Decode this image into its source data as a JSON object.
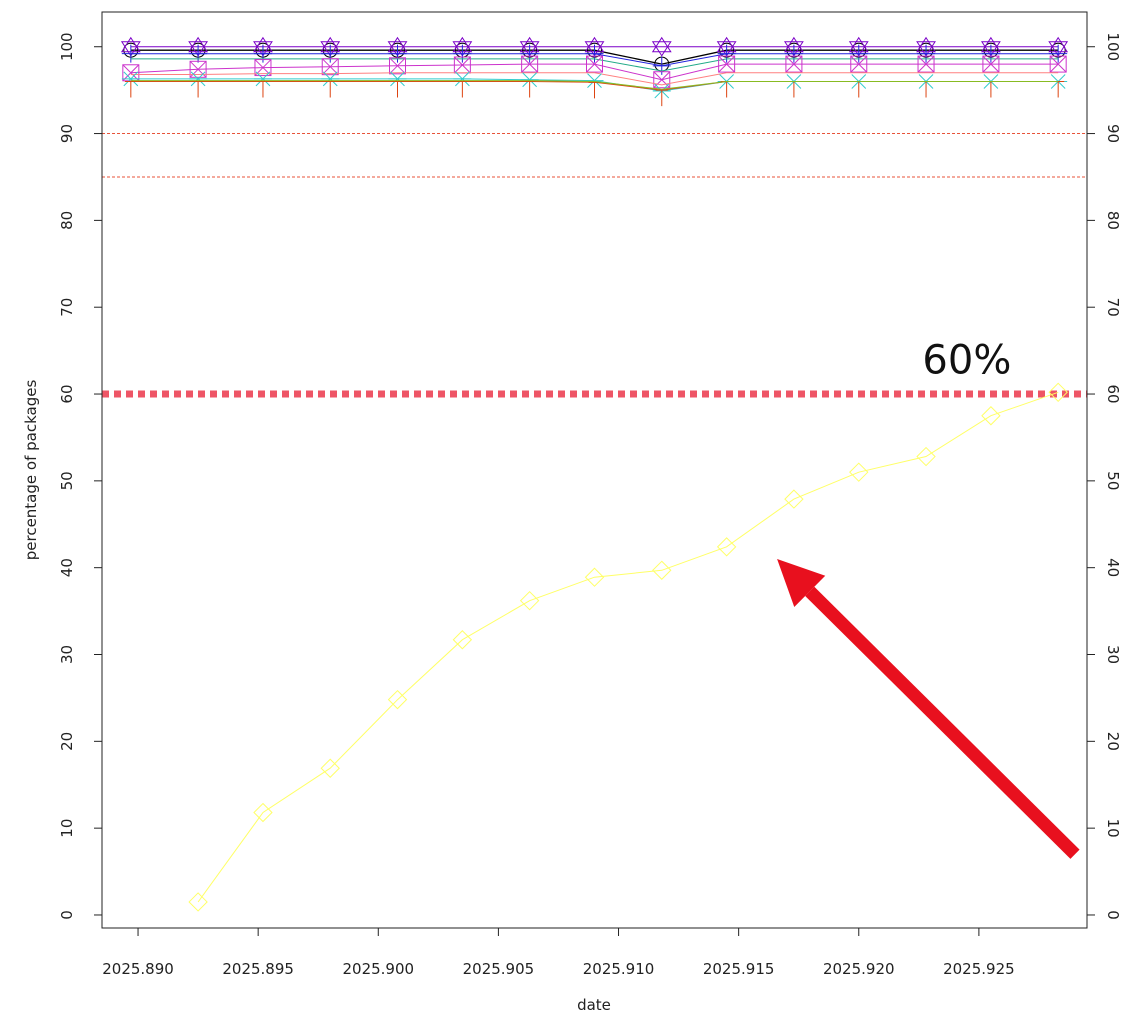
{
  "chart_data": {
    "type": "line",
    "xlabel": "date",
    "ylabel": "percentage of packages",
    "xlim": [
      2025.8885,
      2025.9295
    ],
    "ylim": [
      -1.5,
      104
    ],
    "x_ticks": [
      "2025.890",
      "2025.895",
      "2025.900",
      "2025.905",
      "2025.910",
      "2025.915",
      "2025.920",
      "2025.925"
    ],
    "y_ticks": [
      "0",
      "10",
      "20",
      "30",
      "40",
      "50",
      "60",
      "70",
      "80",
      "90",
      "100"
    ],
    "right_y_ticks": [
      "0",
      "10",
      "20",
      "30",
      "40",
      "50",
      "60",
      "70",
      "80",
      "90",
      "100"
    ],
    "x": [
      2025.8897,
      2025.8925,
      2025.8952,
      2025.898,
      2025.9008,
      2025.9035,
      2025.9063,
      2025.909,
      2025.9118,
      2025.9145,
      2025.9173,
      2025.92,
      2025.9228,
      2025.9255,
      2025.9283
    ],
    "reference_lines": [
      {
        "y": 90,
        "style": "thin dashed",
        "color": "#e8533a"
      },
      {
        "y": 85,
        "style": "thin dashed",
        "color": "#e8533a"
      },
      {
        "y": 60,
        "style": "thick dotted",
        "color": "#ee5566"
      }
    ],
    "annotation": {
      "text": "60%",
      "x": 2025.9245,
      "y": 64
    },
    "arrow": {
      "from": [
        2025.929,
        7
      ],
      "to": [
        2025.9166,
        41
      ],
      "color": "#e8101e"
    },
    "series": [
      {
        "color": "#ffff66",
        "marker": "diamond",
        "values": [
          null,
          1.5,
          11.8,
          16.9,
          24.8,
          31.7,
          36.2,
          38.9,
          39.7,
          42.4,
          47.9,
          51.0,
          52.8,
          57.5,
          60.2
        ]
      },
      {
        "color": "#000000",
        "marker": "circle",
        "values": [
          99.6,
          99.6,
          99.6,
          99.6,
          99.6,
          99.6,
          99.6,
          99.6,
          98.0,
          99.6,
          99.6,
          99.6,
          99.6,
          99.6,
          99.6
        ]
      },
      {
        "color": "#7b00c8",
        "marker": "triangle",
        "values": [
          100,
          100,
          100,
          100,
          100,
          100,
          100,
          100,
          100,
          100,
          100,
          100,
          100,
          100,
          100
        ]
      },
      {
        "color": "#2222dd",
        "marker": "plus",
        "values": [
          99.2,
          99.2,
          99.2,
          99.2,
          99.2,
          99.2,
          99.2,
          99.2,
          97.8,
          99.2,
          99.2,
          99.2,
          99.2,
          99.2,
          99.2
        ]
      },
      {
        "color": "#22aa88",
        "marker": "none",
        "values": [
          98.6,
          98.6,
          98.6,
          98.6,
          98.6,
          98.6,
          98.6,
          98.6,
          97.2,
          98.6,
          98.6,
          98.6,
          98.6,
          98.6,
          98.6
        ]
      },
      {
        "color": "#cc33cc",
        "marker": "square",
        "values": [
          97.0,
          97.4,
          97.6,
          97.7,
          97.8,
          97.9,
          98.0,
          98.0,
          96.2,
          98.0,
          98.0,
          98.0,
          98.0,
          98.0,
          98.0
        ]
      },
      {
        "color": "#ff8080",
        "marker": "none",
        "values": [
          96.8,
          96.8,
          96.9,
          96.9,
          97.0,
          97.0,
          97.0,
          97.0,
          95.6,
          97.0,
          97.0,
          97.0,
          97.0,
          97.0,
          97.0
        ]
      },
      {
        "color": "#33cccc",
        "marker": "asterisk",
        "values": [
          96.3,
          96.3,
          96.3,
          96.3,
          96.3,
          96.3,
          96.2,
          96.1,
          94.9,
          96.0,
          96.0,
          96.0,
          96.0,
          96.0,
          96.0
        ]
      },
      {
        "color": "#dd4411",
        "marker": "down-tick",
        "values": [
          96.0,
          96.0,
          96.0,
          96.0,
          96.0,
          96.0,
          96.0,
          95.9,
          95.0,
          96.0,
          96.0,
          96.0,
          96.0,
          96.0,
          96.0
        ]
      },
      {
        "color": "#88bb22",
        "marker": "none",
        "values": [
          96.1,
          96.1,
          96.1,
          96.1,
          96.1,
          96.1,
          96.1,
          96.0,
          95.1,
          96.0,
          96.0,
          96.0,
          96.0,
          96.0,
          96.0
        ]
      }
    ]
  }
}
